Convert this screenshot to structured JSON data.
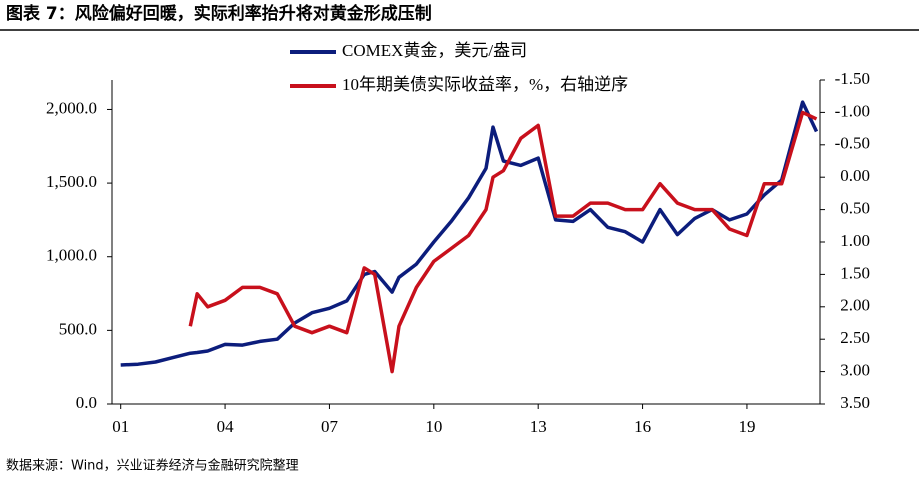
{
  "chart_data": {
    "type": "line",
    "title": "图表 7：风险偏好回暖，实际利率抬升将对黄金形成压制",
    "source": "数据来源：Wind，兴业证券经济与金融研究院整理",
    "x": [
      1.0,
      1.5,
      2.0,
      2.5,
      3.0,
      3.2,
      3.5,
      4.0,
      4.5,
      5.0,
      5.5,
      6.0,
      6.5,
      7.0,
      7.5,
      8.0,
      8.3,
      8.8,
      9.0,
      9.5,
      10.0,
      10.5,
      11.0,
      11.5,
      11.7,
      12.0,
      12.5,
      13.0,
      13.5,
      14.0,
      14.5,
      15.0,
      15.5,
      16.0,
      16.5,
      17.0,
      17.5,
      18.0,
      18.5,
      19.0,
      19.5,
      20.0,
      20.6,
      21.0
    ],
    "series": [
      {
        "name": "COMEX黄金，美元/盎司",
        "color": "#0c1d7c",
        "values": [
          265,
          270,
          285,
          315,
          345,
          350,
          360,
          405,
          400,
          425,
          440,
          550,
          620,
          650,
          700,
          880,
          900,
          760,
          860,
          950,
          1100,
          1240,
          1400,
          1600,
          1880,
          1650,
          1620,
          1670,
          1250,
          1240,
          1320,
          1200,
          1170,
          1100,
          1320,
          1150,
          1260,
          1320,
          1250,
          1290,
          1420,
          1520,
          2050,
          1850
        ]
      },
      {
        "name": "10年期美债实际收益率，%，右轴逆序",
        "color": "#c8101c",
        "axis": "y2",
        "values": [
          null,
          null,
          null,
          null,
          2.3,
          1.8,
          2.0,
          1.9,
          1.7,
          1.7,
          1.8,
          2.3,
          2.4,
          2.3,
          2.4,
          1.4,
          1.5,
          3.0,
          2.3,
          1.7,
          1.3,
          1.1,
          0.9,
          0.5,
          0.0,
          -0.1,
          -0.6,
          -0.8,
          0.6,
          0.6,
          0.4,
          0.4,
          0.5,
          0.5,
          0.1,
          0.4,
          0.5,
          0.5,
          0.8,
          0.9,
          0.1,
          0.1,
          -1.0,
          -0.9
        ]
      }
    ],
    "xlim": [
      0.75,
      21.1
    ],
    "xticks": [
      {
        "value": 1,
        "label": "01"
      },
      {
        "value": 4,
        "label": "04"
      },
      {
        "value": 7,
        "label": "07"
      },
      {
        "value": 10,
        "label": "10"
      },
      {
        "value": 13,
        "label": "13"
      },
      {
        "value": 16,
        "label": "16"
      },
      {
        "value": 19,
        "label": "19"
      }
    ],
    "ylim": [
      0,
      2200
    ],
    "yticks": [
      {
        "value": 0,
        "label": "0.0"
      },
      {
        "value": 500,
        "label": "500.0"
      },
      {
        "value": 1000,
        "label": "1,000.0"
      },
      {
        "value": 1500,
        "label": "1,500.0"
      },
      {
        "value": 2000,
        "label": "2,000.0"
      }
    ],
    "y2lim": [
      3.5,
      -1.5
    ],
    "y2ticks": [
      {
        "value": -1.5,
        "label": "-1.50"
      },
      {
        "value": -1.0,
        "label": "-1.00"
      },
      {
        "value": -0.5,
        "label": "-0.50"
      },
      {
        "value": 0,
        "label": "0.00"
      },
      {
        "value": 0.5,
        "label": "0.50"
      },
      {
        "value": 1.0,
        "label": "1.00"
      },
      {
        "value": 1.5,
        "label": "1.50"
      },
      {
        "value": 2.0,
        "label": "2.00"
      },
      {
        "value": 2.5,
        "label": "2.50"
      },
      {
        "value": 3.0,
        "label": "3.00"
      },
      {
        "value": 3.5,
        "label": "3.50"
      }
    ]
  }
}
